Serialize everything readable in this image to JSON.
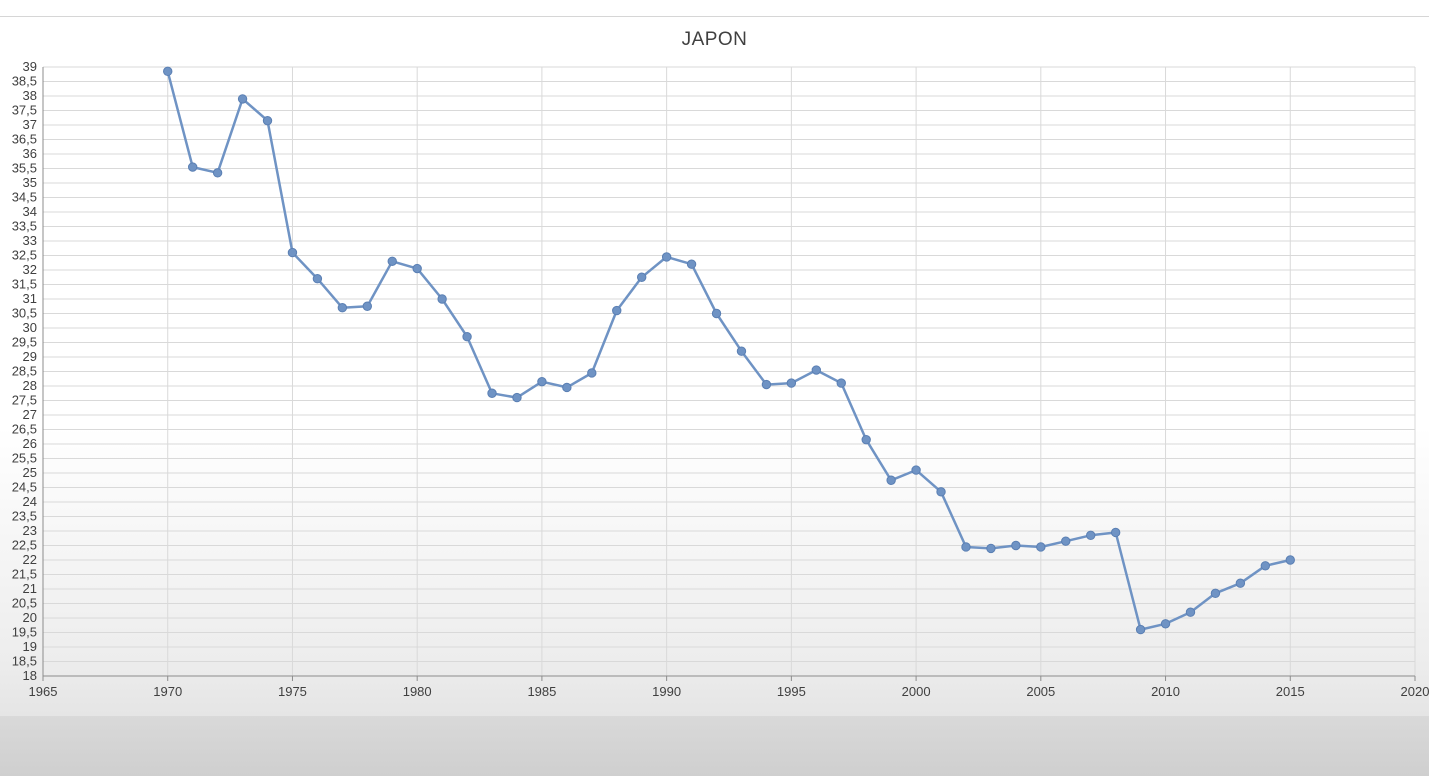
{
  "chart_data": {
    "type": "line",
    "title": "JAPON",
    "xlabel": "",
    "ylabel": "",
    "xlim": [
      1965,
      2020
    ],
    "ylim": [
      18,
      39
    ],
    "x_ticks": [
      "1965",
      "1970",
      "1975",
      "1980",
      "1985",
      "1990",
      "1995",
      "2000",
      "2005",
      "2010",
      "2015",
      "2020"
    ],
    "y_ticks": [
      "18",
      "18,5",
      "19",
      "19,5",
      "20",
      "20,5",
      "21",
      "21,5",
      "22",
      "22,5",
      "23",
      "23,5",
      "24",
      "24,5",
      "25",
      "25,5",
      "26",
      "26,5",
      "27",
      "27,5",
      "28",
      "28,5",
      "29",
      "29,5",
      "30",
      "30,5",
      "31",
      "31,5",
      "32",
      "32,5",
      "33",
      "33,5",
      "34",
      "34,5",
      "35",
      "35,5",
      "36",
      "36,5",
      "37",
      "37,5",
      "38",
      "38,5",
      "39"
    ],
    "grid": true,
    "legend": "none",
    "series": [
      {
        "color": "#6f93c4",
        "x": [
          1970,
          1971,
          1972,
          1973,
          1974,
          1975,
          1976,
          1977,
          1978,
          1979,
          1980,
          1981,
          1982,
          1983,
          1984,
          1985,
          1986,
          1987,
          1988,
          1989,
          1990,
          1991,
          1992,
          1993,
          1994,
          1995,
          1996,
          1997,
          1998,
          1999,
          2000,
          2001,
          2002,
          2003,
          2004,
          2005,
          2006,
          2007,
          2008,
          2009,
          2010,
          2011,
          2012,
          2013,
          2014,
          2015
        ],
        "values": [
          38.85,
          35.55,
          35.35,
          37.9,
          37.15,
          32.6,
          31.7,
          30.7,
          30.75,
          32.3,
          32.05,
          31.0,
          29.7,
          27.75,
          27.6,
          28.15,
          27.95,
          28.45,
          30.6,
          31.75,
          32.45,
          32.2,
          30.5,
          29.2,
          28.05,
          28.1,
          28.55,
          28.1,
          26.15,
          24.75,
          25.1,
          24.35,
          22.45,
          22.4,
          22.5,
          22.45,
          22.65,
          22.85,
          22.95,
          19.6,
          19.8,
          20.2,
          20.85,
          21.2,
          21.8,
          22.0
        ]
      }
    ]
  }
}
